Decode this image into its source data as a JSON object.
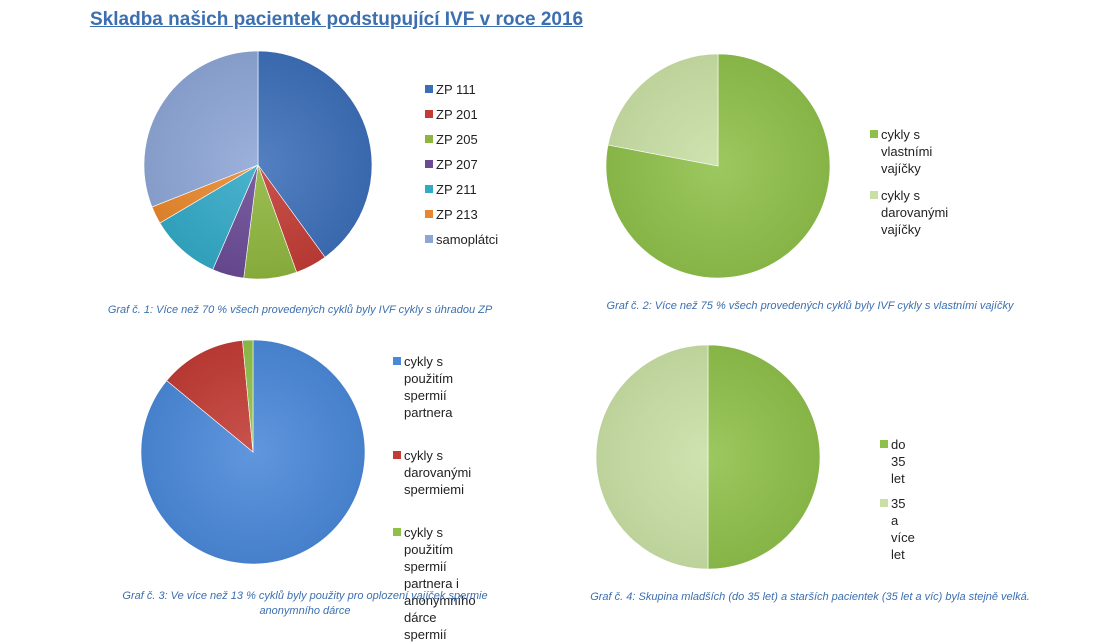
{
  "page": {
    "title": "Skladba našich pacientek podstupující IVF v roce 2016"
  },
  "chart_data": [
    {
      "type": "pie",
      "categories": [
        "ZP 111",
        "ZP 201",
        "ZP 205",
        "ZP 207",
        "ZP 211",
        "ZP 213",
        "samoplátci"
      ],
      "values": [
        40,
        4.5,
        7.5,
        4.5,
        10,
        2.5,
        31
      ],
      "colors": [
        "#3d6fb8",
        "#c23c35",
        "#8fb53e",
        "#6a4a95",
        "#33a9c6",
        "#e8882e",
        "#8ea6d6"
      ],
      "legend_lines": [
        [
          "ZP 111"
        ],
        [
          "ZP 201"
        ],
        [
          "ZP 205"
        ],
        [
          "ZP 207"
        ],
        [
          "ZP 211"
        ],
        [
          "ZP 213"
        ],
        [
          "samoplátci"
        ]
      ],
      "caption": [
        "Graf č. 1: Více než 70 % všech provedených cyklů byly IVF cykly s úhradou ZP"
      ],
      "legend_placement": "right"
    },
    {
      "type": "pie",
      "categories": [
        "cykly s vlastními vajíčky",
        "cykly s darovanými vajíčky"
      ],
      "values": [
        78,
        22
      ],
      "colors": [
        "#8fc04a",
        "#c9dfa5"
      ],
      "legend_lines": [
        [
          "cykly s vlastními",
          "vajíčky"
        ],
        [
          "cykly s darovanými",
          "vajíčky"
        ]
      ],
      "caption": [
        "Graf č. 2: Více než 75 % všech provedených cyklů byly IVF cykly s vlastními vajíčky"
      ],
      "legend_placement": "right"
    },
    {
      "type": "pie",
      "categories": [
        "cykly s použitím spermií partnera",
        "cykly s darovanými spermiemi",
        "cykly s použitím spermií partnera i anonymního dárce spermií"
      ],
      "values": [
        86,
        12.5,
        1.5
      ],
      "colors": [
        "#4a88d8",
        "#c23c35",
        "#8fc04a"
      ],
      "legend_lines": [
        [
          "cykly s použitím",
          "spermií partnera"
        ],
        [
          "cykly s darovanými",
          "spermiemi"
        ],
        [
          "cykly s použitím",
          "spermií partnera i",
          "anonymního dárce",
          "spermií"
        ]
      ],
      "caption": [
        "Graf č. 3: Ve více než 13 % cyklů byly použity pro oplození vajíček spermie",
        "anonymního dárce"
      ],
      "legend_placement": "right"
    },
    {
      "type": "pie",
      "categories": [
        "do 35 let",
        "35 a více let"
      ],
      "values": [
        50,
        50
      ],
      "colors": [
        "#8fc04a",
        "#c9dfa5"
      ],
      "legend_lines": [
        [
          "do 35 let"
        ],
        [
          "35 a více let"
        ]
      ],
      "caption": [
        "Graf č. 4: Skupina mladších (do 35 let) a starších pacientek (35 let a víc) byla stejně velká."
      ],
      "legend_placement": "right"
    }
  ]
}
